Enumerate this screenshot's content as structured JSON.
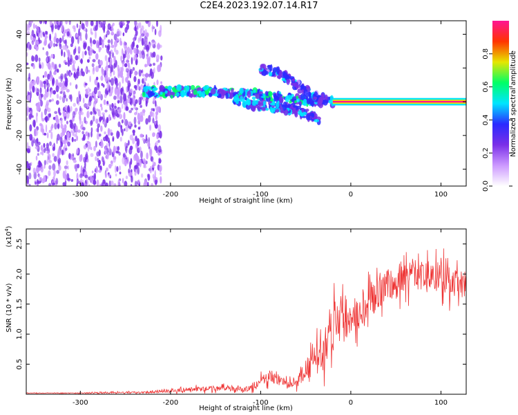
{
  "title": "C2E4.2023.192.07.14.R17",
  "colors": {
    "line": "#ee3333",
    "spectrogram_scale": [
      "#ffffff",
      "#cc99ff",
      "#7a2fe8",
      "#2a2aff",
      "#00e5ff",
      "#00ff66",
      "#e6e600",
      "#ff3300",
      "#ff1493"
    ]
  },
  "chart_data": [
    {
      "type": "heatmap",
      "title": "",
      "xlabel": "Height of straight line (km)",
      "ylabel": "Frequency (Hz)",
      "xlim": [
        -360,
        128
      ],
      "ylim": [
        -50,
        48
      ],
      "xticks": [
        -300,
        -200,
        -100,
        0,
        100
      ],
      "yticks": [
        -40,
        -20,
        0,
        20,
        40
      ],
      "colorbar": {
        "label": "Normalized spectral amplitude",
        "range": [
          0,
          1
        ],
        "ticks": [
          "0.0",
          "0.2",
          "0.4",
          "0.6",
          "0.8"
        ]
      },
      "features": [
        {
          "name": "noise",
          "x_range": [
            -360,
            -210
          ],
          "amplitude": 0.25
        },
        {
          "name": "main_band",
          "points": [
            [
              -230,
              6
            ],
            [
              -150,
              6
            ],
            [
              -100,
              4
            ],
            [
              -60,
              1
            ],
            [
              -30,
              0
            ]
          ],
          "amplitude": 0.45
        },
        {
          "name": "lower_branch",
          "points": [
            [
              -130,
              2
            ],
            [
              -100,
              -3
            ],
            [
              -70,
              -4
            ],
            [
              -50,
              -7
            ],
            [
              -35,
              -10
            ]
          ],
          "amplitude": 0.4
        },
        {
          "name": "upper_branch",
          "points": [
            [
              -100,
              20
            ],
            [
              -80,
              17
            ],
            [
              -60,
              10
            ],
            [
              -40,
              3
            ],
            [
              -20,
              0
            ]
          ],
          "amplitude": 0.35
        },
        {
          "name": "carrier",
          "x_range": [
            -20,
            128
          ],
          "frequency": 0,
          "amplitude": 1.0
        }
      ]
    },
    {
      "type": "line",
      "title": "",
      "xlabel": "Height of straight line (km)",
      "ylabel": "SNR (10 * v/v)",
      "ylabel_multiplier": "(x10",
      "ylabel_exponent": "4",
      "ylabel_suffix": ")",
      "xlim": [
        -360,
        128
      ],
      "ylim": [
        0,
        2.75
      ],
      "xticks": [
        -300,
        -200,
        -100,
        0,
        100
      ],
      "yticks": [
        0.5,
        1.0,
        1.5,
        2.0,
        2.5
      ],
      "ytick_labels": [
        "0.5",
        "1.0",
        "1.5",
        "2.0",
        "2.5"
      ],
      "series": [
        {
          "x": [
            -360,
            -300,
            -240,
            -200,
            -180,
            -160,
            -140,
            -120,
            -110,
            -100,
            -90,
            -80,
            -70,
            -60,
            -50,
            -40,
            -30,
            -25,
            -20,
            -15,
            -10,
            0,
            10,
            20,
            30,
            40,
            50,
            60,
            70,
            80,
            90,
            100,
            110,
            120,
            128
          ],
          "y": [
            0.02,
            0.02,
            0.03,
            0.05,
            0.08,
            0.09,
            0.1,
            0.08,
            0.1,
            0.2,
            0.3,
            0.25,
            0.15,
            0.2,
            0.4,
            0.55,
            0.7,
            0.95,
            1.2,
            1.3,
            1.2,
            1.3,
            1.4,
            1.55,
            1.7,
            1.8,
            1.85,
            2.0,
            2.05,
            1.95,
            1.9,
            2.0,
            1.8,
            1.85,
            1.8
          ],
          "noise": [
            0.005,
            0.01,
            0.015,
            0.03,
            0.05,
            0.05,
            0.05,
            0.05,
            0.06,
            0.12,
            0.14,
            0.12,
            0.08,
            0.1,
            0.22,
            0.3,
            0.4,
            0.45,
            0.55,
            0.5,
            0.45,
            0.4,
            0.35,
            0.35,
            0.35,
            0.35,
            0.35,
            0.4,
            0.35,
            0.3,
            0.3,
            0.35,
            0.3,
            0.3,
            0.25
          ]
        }
      ]
    }
  ]
}
